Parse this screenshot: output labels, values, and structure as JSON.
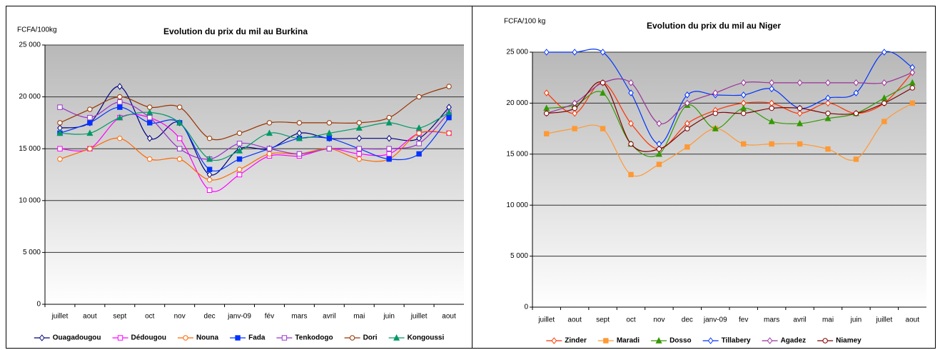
{
  "chart_data": [
    {
      "type": "line",
      "title": "Evolution du prix du mil au Burkina",
      "y_label": "FCFA/100kg",
      "categories": [
        "juillet",
        "aout",
        "sept",
        "oct",
        "nov",
        "dec",
        "janv-09",
        "fév",
        "mars",
        "avril",
        "mai",
        "juin",
        "juillet",
        "aout"
      ],
      "ylim": [
        0,
        25000
      ],
      "yticks": [
        0,
        {
          "value": 5000,
          "label": "5 000"
        },
        {
          "value": 10000,
          "label": "10 000"
        },
        {
          "value": 15000,
          "label": "15 000"
        },
        {
          "value": 20000,
          "label": "20 000"
        },
        {
          "value": 25000,
          "label": "25 000"
        }
      ],
      "grid": true,
      "smooth": true,
      "legend": "bottom",
      "series": [
        {
          "name": "Ouagadougou",
          "color": "#000080",
          "marker": "diamond",
          "filled": false,
          "values": [
            17000,
            17500,
            21000,
            16000,
            17500,
            12500,
            15000,
            15000,
            16500,
            16000,
            16000,
            16000,
            16000,
            19000
          ]
        },
        {
          "name": "Dédougou",
          "color": "#ff00ff",
          "marker": "square",
          "filled": false,
          "values": [
            15000,
            15000,
            18000,
            18000,
            16000,
            11000,
            12500,
            14300,
            14300,
            15000,
            14500,
            14500,
            16500,
            16500
          ]
        },
        {
          "name": "Nouna",
          "color": "#ff6600",
          "marker": "circle",
          "filled": false,
          "values": [
            14000,
            15000,
            16000,
            14000,
            14000,
            12000,
            13000,
            14500,
            14500,
            15000,
            14000,
            14000,
            16500,
            16500
          ]
        },
        {
          "name": "Fada",
          "color": "#0033ff",
          "marker": "square",
          "filled": true,
          "values": [
            16500,
            17500,
            19000,
            17500,
            17500,
            13000,
            14000,
            15000,
            16000,
            16000,
            15000,
            14000,
            14500,
            18000
          ]
        },
        {
          "name": "Tenkodogo",
          "color": "#9933cc",
          "marker": "square",
          "filled": false,
          "values": [
            19000,
            18000,
            19500,
            18000,
            15000,
            14000,
            15500,
            15000,
            14500,
            15000,
            15000,
            15000,
            15500,
            18500
          ]
        },
        {
          "name": "Dori",
          "color": "#993300",
          "marker": "circle",
          "filled": false,
          "values": [
            17500,
            18800,
            20000,
            19000,
            19000,
            16000,
            16500,
            17500,
            17500,
            17500,
            17500,
            18000,
            20000,
            21000
          ]
        },
        {
          "name": "Kongoussi",
          "color": "#009966",
          "marker": "triangle",
          "filled": true,
          "values": [
            16500,
            16500,
            18000,
            18500,
            17500,
            14000,
            14800,
            16500,
            16000,
            16500,
            17000,
            17500,
            17000,
            18500
          ]
        }
      ]
    },
    {
      "type": "line",
      "title": "Evolution du prix du mil au Niger",
      "y_label": "FCFA/100 kg",
      "categories": [
        "juillet",
        "aout",
        "sept",
        "oct",
        "nov",
        "dec",
        "janv-09",
        "fev",
        "mars",
        "avril",
        "mai",
        "juin",
        "juillet",
        "aout"
      ],
      "ylim": [
        0,
        25000
      ],
      "yticks": [
        0,
        {
          "value": 5000,
          "label": "5 000"
        },
        {
          "value": 10000,
          "label": "10 000"
        },
        {
          "value": 15000,
          "label": "15 000"
        },
        {
          "value": 20000,
          "label": "20 000"
        },
        {
          "value": 25000,
          "label": "25 000"
        }
      ],
      "grid": true,
      "smooth": true,
      "legend": "bottom",
      "series": [
        {
          "name": "Zinder",
          "color": "#ff3300",
          "marker": "diamond",
          "filled": false,
          "values": [
            21000,
            19000,
            22000,
            18000,
            15500,
            18000,
            19300,
            20000,
            20000,
            19000,
            20000,
            19000,
            20000,
            23000
          ]
        },
        {
          "name": "Maradi",
          "color": "#ff9933",
          "marker": "square",
          "filled": true,
          "values": [
            17000,
            17500,
            17500,
            13000,
            14000,
            15700,
            17500,
            16000,
            16000,
            16000,
            15500,
            14500,
            18200,
            20000
          ]
        },
        {
          "name": "Dosso",
          "color": "#339900",
          "marker": "triangle",
          "filled": true,
          "values": [
            19500,
            19800,
            21000,
            16000,
            15000,
            19800,
            17500,
            19500,
            18200,
            18000,
            18500,
            19000,
            20500,
            22000
          ]
        },
        {
          "name": "Tillabery",
          "color": "#0033ff",
          "marker": "diamond",
          "filled": false,
          "values": [
            25000,
            25000,
            25000,
            21000,
            16000,
            20800,
            20800,
            20800,
            21400,
            19500,
            20500,
            21000,
            25000,
            23500
          ]
        },
        {
          "name": "Agadez",
          "color": "#993399",
          "marker": "diamond",
          "filled": false,
          "values": [
            19000,
            20000,
            22000,
            22000,
            18000,
            20000,
            21000,
            22000,
            22000,
            22000,
            22000,
            22000,
            22000,
            23000
          ]
        },
        {
          "name": "Niamey",
          "color": "#800000",
          "marker": "circle",
          "filled": false,
          "values": [
            19000,
            19500,
            22000,
            16000,
            15500,
            17500,
            19000,
            19000,
            19500,
            19500,
            19000,
            19000,
            20000,
            21500
          ]
        }
      ]
    }
  ]
}
